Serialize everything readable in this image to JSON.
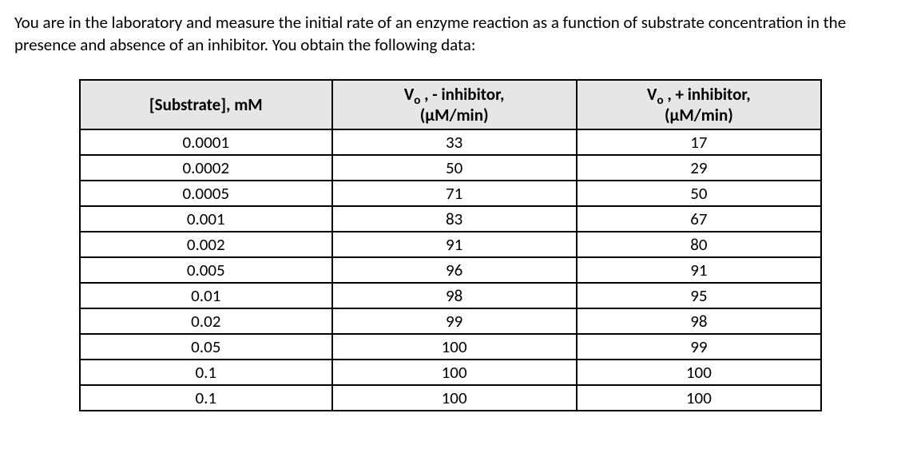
{
  "intro": "You are in the laboratory and measure the initial rate of an enzyme reaction as a function of substrate concentration in the presence and absence of an inhibitor. You obtain the following data:",
  "table": {
    "headers": {
      "col1": "[Substrate], mM",
      "col2_pre": "V",
      "col2_sub": "o",
      "col2_mid": " , - inhibitor,",
      "col2_unit": "(μM/min)",
      "col3_pre": "V",
      "col3_sub": "o",
      "col3_mid": " , + inhibitor,",
      "col3_unit": "(μM/min)"
    },
    "rows": [
      {
        "s": "0.0001",
        "v1": "33",
        "v2": "17"
      },
      {
        "s": "0.0002",
        "v1": "50",
        "v2": "29"
      },
      {
        "s": "0.0005",
        "v1": "71",
        "v2": "50"
      },
      {
        "s": "0.001",
        "v1": "83",
        "v2": "67"
      },
      {
        "s": "0.002",
        "v1": "91",
        "v2": "80"
      },
      {
        "s": "0.005",
        "v1": "96",
        "v2": "91"
      },
      {
        "s": "0.01",
        "v1": "98",
        "v2": "95"
      },
      {
        "s": "0.02",
        "v1": "99",
        "v2": "98"
      },
      {
        "s": "0.05",
        "v1": "100",
        "v2": "99"
      },
      {
        "s": "0.1",
        "v1": "100",
        "v2": "100"
      },
      {
        "s": "0.1",
        "v1": "100",
        "v2": "100"
      }
    ],
    "col_widths": [
      "34%",
      "33%",
      "33%"
    ],
    "header_bg": "#e7e6e6",
    "border_color": "#000000",
    "font_family": "Calibri, Arial, sans-serif"
  }
}
